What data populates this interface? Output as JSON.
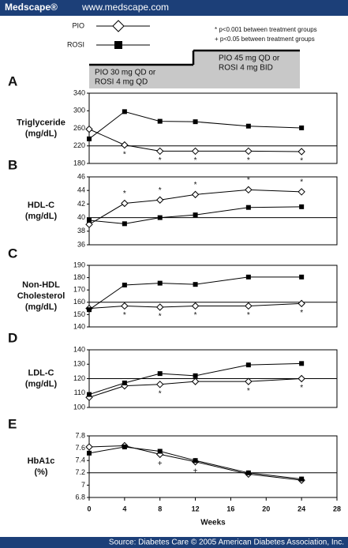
{
  "header": {
    "brand": "Medscape®",
    "url": "www.medscape.com"
  },
  "footer": "Source: Diabetes Care © 2005 American Diabetes Association, Inc.",
  "legend": [
    {
      "name": "PIO",
      "marker": "open-diamond"
    },
    {
      "name": "ROSI",
      "marker": "filled-square"
    }
  ],
  "notes": [
    "* p<0.001 between treatment groups",
    "+ p<0.05 between treatment groups"
  ],
  "phases": [
    [
      "PIO 30 mg QD or",
      "ROSI 4 mg QD"
    ],
    [
      "PIO 45 mg QD or",
      "ROSI 4 mg BID"
    ]
  ],
  "chart_data": [
    {
      "type": "line",
      "label": "A",
      "ylabel": [
        "Triglyceride",
        "(mg/dL)"
      ],
      "x": [
        0,
        4,
        8,
        12,
        18,
        24
      ],
      "xlim": [
        0,
        28
      ],
      "ylim": [
        180,
        340
      ],
      "yticks": [
        180,
        220,
        260,
        300,
        340
      ],
      "refline": 220,
      "series": [
        {
          "marker": "open-diamond",
          "values": [
            258,
            222,
            208,
            208,
            208,
            207
          ]
        },
        {
          "marker": "filled-square",
          "values": [
            236,
            298,
            276,
            275,
            265,
            261
          ]
        }
      ],
      "annotations": [
        null,
        "*",
        "*",
        "*",
        "*",
        "*"
      ],
      "annotation_side": "below"
    },
    {
      "type": "line",
      "label": "B",
      "ylabel": [
        "HDL-C",
        "(mg/dL)"
      ],
      "x": [
        0,
        4,
        8,
        12,
        18,
        24
      ],
      "xlim": [
        0,
        28
      ],
      "ylim": [
        36,
        46
      ],
      "yticks": [
        36,
        38,
        40,
        42,
        44,
        46
      ],
      "refline": 40,
      "series": [
        {
          "marker": "open-diamond",
          "values": [
            39,
            42.1,
            42.6,
            43.4,
            44.1,
            43.8
          ]
        },
        {
          "marker": "filled-square",
          "values": [
            39.6,
            39.1,
            40,
            40.4,
            41.5,
            41.6
          ]
        }
      ],
      "annotations": [
        null,
        "*",
        "*",
        "*",
        "*",
        "*"
      ],
      "annotation_side": "above"
    },
    {
      "type": "line",
      "label": "C",
      "ylabel": [
        "Non-HDL",
        "Cholesterol",
        "(mg/dL)"
      ],
      "x": [
        0,
        4,
        8,
        12,
        18,
        24
      ],
      "xlim": [
        0,
        28
      ],
      "ylim": [
        140,
        190
      ],
      "yticks": [
        140,
        150,
        160,
        170,
        180,
        190
      ],
      "refline": 160,
      "series": [
        {
          "marker": "open-diamond",
          "values": [
            155,
            157,
            156,
            157,
            157,
            159
          ]
        },
        {
          "marker": "filled-square",
          "values": [
            154,
            174,
            175.5,
            174.5,
            180.5,
            180.5
          ]
        }
      ],
      "annotations": [
        null,
        "*",
        "*",
        "*",
        "*",
        "*"
      ],
      "annotation_side": "below"
    },
    {
      "type": "line",
      "label": "D",
      "ylabel": [
        "LDL-C",
        "(mg/dL)"
      ],
      "x": [
        0,
        4,
        8,
        12,
        18,
        24
      ],
      "xlim": [
        0,
        28
      ],
      "ylim": [
        100,
        140
      ],
      "yticks": [
        100,
        110,
        120,
        130,
        140
      ],
      "refline": 120,
      "series": [
        {
          "marker": "open-diamond",
          "values": [
            107,
            115,
            116,
            118,
            118,
            120
          ]
        },
        {
          "marker": "filled-square",
          "values": [
            109,
            117,
            123.5,
            122,
            129.5,
            130.5
          ]
        }
      ],
      "annotations": [
        null,
        null,
        "*",
        null,
        "*",
        "*"
      ],
      "annotation_side": "below"
    },
    {
      "type": "line",
      "label": "E",
      "ylabel": [
        "HbA1c",
        "(%)"
      ],
      "x": [
        0,
        4,
        8,
        12,
        18,
        24
      ],
      "xlim": [
        0,
        28
      ],
      "ylim": [
        6.8,
        7.8
      ],
      "yticks": [
        6.8,
        7,
        7.2,
        7.4,
        7.6,
        7.8
      ],
      "refline": 7.2,
      "series": [
        {
          "marker": "open-diamond",
          "values": [
            7.62,
            7.64,
            7.5,
            7.38,
            7.18,
            7.08
          ]
        },
        {
          "marker": "filled-square",
          "values": [
            7.52,
            7.62,
            7.55,
            7.4,
            7.2,
            7.1
          ]
        }
      ],
      "annotations": [
        null,
        null,
        "+",
        "+",
        null,
        null
      ],
      "annotation_side": "below",
      "xticks": [
        0,
        4,
        8,
        12,
        16,
        20,
        24,
        28
      ],
      "xlabel": "Weeks"
    }
  ]
}
